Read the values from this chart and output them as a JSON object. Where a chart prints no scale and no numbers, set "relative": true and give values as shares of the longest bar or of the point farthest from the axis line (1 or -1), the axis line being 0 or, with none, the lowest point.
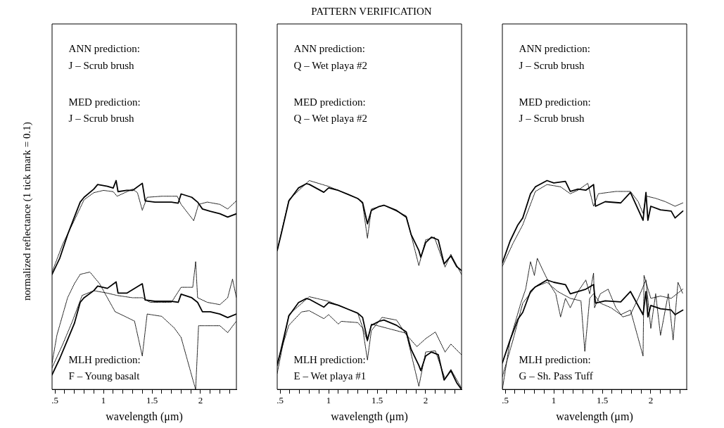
{
  "chart_data": [
    {
      "type": "line",
      "xlabel": "wavelength (μm)",
      "ylabel": "normalized reflectance (1 tick mark = 0.1)",
      "relative": true,
      "xlim": [
        0.47,
        2.37
      ],
      "xticks": [
        {
          "value": 0.5,
          "label": ".5"
        },
        {
          "value": 0.6,
          "label": null
        },
        {
          "value": 0.7,
          "label": null
        },
        {
          "value": 0.8,
          "label": null
        },
        {
          "value": 0.9,
          "label": null
        },
        1,
        {
          "value": 1.1,
          "label": null
        },
        {
          "value": 1.2,
          "label": null
        },
        {
          "value": 1.3,
          "label": null
        },
        {
          "value": 1.4,
          "label": null
        },
        1.5,
        {
          "value": 1.6,
          "label": null
        },
        {
          "value": 1.7,
          "label": null
        },
        {
          "value": 1.8,
          "label": null
        },
        {
          "value": 1.9,
          "label": null
        },
        2,
        {
          "value": 2.1,
          "label": null
        },
        {
          "value": 2.2,
          "label": null
        },
        {
          "value": 2.3,
          "label": null
        }
      ],
      "annotations": [
        "ANN prediction:",
        "J – Scrub brush",
        "MED prediction:",
        "J – Scrub brush",
        "MLH prediction:",
        "F – Young basalt"
      ],
      "series": [
        {
          "color": "#000000",
          "line_style": "solid",
          "x": [
            0.47,
            0.55,
            0.63,
            0.7,
            0.76,
            0.8,
            0.9,
            0.94,
            1.04,
            1.1,
            1.13,
            1.15,
            1.24,
            1.3,
            1.4,
            1.43,
            1.53,
            1.7,
            1.77,
            1.8,
            1.91,
            1.97,
            2.02,
            2.1,
            2.2,
            2.28,
            2.37
          ],
          "values": [
            0.551,
            0.629,
            0.741,
            0.825,
            0.897,
            0.92,
            0.959,
            0.981,
            0.973,
            0.964,
            1.0,
            0.947,
            0.953,
            0.953,
            0.987,
            0.903,
            0.897,
            0.897,
            0.892,
            0.936,
            0.92,
            0.897,
            0.864,
            0.853,
            0.841,
            0.825,
            0.841
          ]
        },
        {
          "color": "#000000",
          "line_style": "dotted",
          "x": [
            0.47,
            0.58,
            0.68,
            0.8,
            0.9,
            1.0,
            1.1,
            1.14,
            1.3,
            1.35,
            1.4,
            1.45,
            1.6,
            1.76,
            1.8,
            1.93,
            1.98,
            2.07,
            2.2,
            2.28,
            2.37
          ],
          "values": [
            0.562,
            0.696,
            0.791,
            0.908,
            0.942,
            0.953,
            0.947,
            0.925,
            0.959,
            0.942,
            0.858,
            0.92,
            0.925,
            0.925,
            0.886,
            0.808,
            0.886,
            0.897,
            0.886,
            0.864,
            0.903
          ]
        },
        {
          "color": "#000000",
          "line_style": "solid",
          "x": [
            0.47,
            0.55,
            0.63,
            0.7,
            0.76,
            0.8,
            0.9,
            0.94,
            1.04,
            1.13,
            1.15,
            1.24,
            1.4,
            1.43,
            1.53,
            1.7,
            1.77,
            1.8,
            1.91,
            1.97,
            2.02,
            2.1,
            2.2,
            2.28,
            2.37
          ],
          "values": [
            0.07,
            0.149,
            0.238,
            0.316,
            0.417,
            0.439,
            0.473,
            0.495,
            0.484,
            0.515,
            0.461,
            0.461,
            0.506,
            0.428,
            0.422,
            0.422,
            0.417,
            0.456,
            0.439,
            0.417,
            0.372,
            0.372,
            0.361,
            0.344,
            0.361
          ]
        },
        {
          "color": "#000000",
          "line_style": "dotted",
          "x": [
            0.47,
            0.52,
            0.63,
            0.7,
            0.76,
            0.86,
            0.96,
            1.04,
            1.12,
            1.22,
            1.32,
            1.4,
            1.45,
            1.6,
            1.73,
            1.8,
            1.92,
            1.95,
            1.98,
            2.07,
            2.2,
            2.28,
            2.37
          ],
          "values": [
            0.126,
            0.26,
            0.439,
            0.506,
            0.551,
            0.562,
            0.506,
            0.439,
            0.372,
            0.35,
            0.327,
            0.16,
            0.361,
            0.35,
            0.294,
            0.249,
            0.048,
            0,
            0.305,
            0.305,
            0.305,
            0.272,
            0.327
          ]
        },
        {
          "color": "#000000",
          "line_style": "dotted",
          "x": [
            0.47,
            0.58,
            0.68,
            0.78,
            0.9,
            1.04,
            1.14,
            1.3,
            1.4,
            1.48,
            1.7,
            1.8,
            1.92,
            1.95,
            1.97,
            2.07,
            2.2,
            2.28,
            2.33,
            2.37
          ],
          "values": [
            0.104,
            0.216,
            0.327,
            0.45,
            0.473,
            0.461,
            0.45,
            0.439,
            0.439,
            0.417,
            0.417,
            0.489,
            0.489,
            0.612,
            0.439,
            0.417,
            0.406,
            0.439,
            0.528,
            0.439
          ]
        }
      ]
    },
    {
      "type": "line",
      "title": "PATTERN VERIFICATION",
      "xlabel": "wavelength (μm)",
      "relative": true,
      "xlim": [
        0.47,
        2.37
      ],
      "xticks": [
        {
          "value": 0.5,
          "label": ".5"
        },
        {
          "value": 0.6,
          "label": null
        },
        {
          "value": 0.7,
          "label": null
        },
        {
          "value": 0.8,
          "label": null
        },
        {
          "value": 0.9,
          "label": null
        },
        1,
        {
          "value": 1.1,
          "label": null
        },
        {
          "value": 1.2,
          "label": null
        },
        {
          "value": 1.3,
          "label": null
        },
        {
          "value": 1.4,
          "label": null
        },
        1.5,
        {
          "value": 1.6,
          "label": null
        },
        {
          "value": 1.7,
          "label": null
        },
        {
          "value": 1.8,
          "label": null
        },
        {
          "value": 1.9,
          "label": null
        },
        2,
        {
          "value": 2.1,
          "label": null
        },
        {
          "value": 2.2,
          "label": null
        },
        {
          "value": 2.3,
          "label": null
        }
      ],
      "annotations": [
        "ANN prediction:",
        "Q – Wet playa #2",
        "MED prediction:",
        "Q – Wet playa #2",
        "MLH prediction:",
        "E – Wet playa #1"
      ],
      "series": [
        {
          "color": "#000000",
          "line_style": "solid",
          "x": [
            0.47,
            0.51,
            0.59,
            0.69,
            0.77,
            0.8,
            0.95,
            1.0,
            1.1,
            1.2,
            1.3,
            1.35,
            1.4,
            1.44,
            1.52,
            1.57,
            1.7,
            1.8,
            1.85,
            1.93,
            1.95,
            2.0,
            2.06,
            2.13,
            2.19,
            2.26,
            2.32,
            2.37
          ],
          "values": [
            0.665,
            0.742,
            0.902,
            0.965,
            0.985,
            0.982,
            0.944,
            0.965,
            0.953,
            0.934,
            0.914,
            0.895,
            0.793,
            0.857,
            0.876,
            0.882,
            0.857,
            0.825,
            0.742,
            0.665,
            0.633,
            0.703,
            0.729,
            0.716,
            0.601,
            0.639,
            0.588,
            0.569
          ]
        },
        {
          "color": "#000000",
          "line_style": "dotted",
          "x": [
            0.47,
            0.59,
            0.8,
            1.0,
            1.3,
            1.35,
            1.4,
            1.44,
            1.57,
            1.8,
            1.93,
            2.0,
            2.09,
            2.2,
            2.26,
            2.37
          ],
          "values": [
            0.665,
            0.908,
            1.0,
            0.972,
            0.914,
            0.889,
            0.724,
            0.864,
            0.882,
            0.831,
            0.593,
            0.716,
            0.729,
            0.586,
            0.647,
            0.55
          ]
        },
        {
          "color": "#000000",
          "line_style": "solid",
          "x": [
            0.47,
            0.51,
            0.59,
            0.69,
            0.77,
            0.8,
            0.95,
            1.0,
            1.1,
            1.2,
            1.3,
            1.35,
            1.4,
            1.44,
            1.52,
            1.57,
            1.7,
            1.8,
            1.85,
            1.93,
            1.95,
            2.0,
            2.06,
            2.13,
            2.19,
            2.26,
            2.32,
            2.37
          ],
          "values": [
            0.115,
            0.192,
            0.352,
            0.416,
            0.435,
            0.432,
            0.394,
            0.416,
            0.403,
            0.384,
            0.365,
            0.345,
            0.237,
            0.307,
            0.326,
            0.332,
            0.307,
            0.275,
            0.192,
            0.115,
            0.09,
            0.16,
            0.179,
            0.166,
            0.045,
            0.09,
            0.032,
            0
          ]
        },
        {
          "color": "#000000",
          "line_style": "dotted",
          "x": [
            0.47,
            0.59,
            0.8,
            1.0,
            1.3,
            1.4,
            1.44,
            1.8,
            1.93,
            2.0,
            2.1,
            2.2,
            2.26,
            2.37
          ],
          "values": [
            0.077,
            0.358,
            0.444,
            0.422,
            0.365,
            0.23,
            0.313,
            0.269,
            0.015,
            0.179,
            0.185,
            0.051,
            0.096,
            0.006
          ]
        },
        {
          "color": "#000000",
          "line_style": "dotted",
          "x": [
            0.47,
            0.59,
            0.72,
            0.8,
            0.95,
            1.0,
            1.1,
            1.13,
            1.3,
            1.35,
            1.4,
            1.44,
            1.55,
            1.7,
            1.8,
            1.91,
            2.0,
            2.1,
            2.2,
            2.26,
            2.37
          ],
          "values": [
            0.128,
            0.307,
            0.371,
            0.377,
            0.339,
            0.358,
            0.313,
            0.326,
            0.32,
            0.294,
            0.141,
            0.281,
            0.345,
            0.332,
            0.262,
            0.205,
            0.243,
            0.275,
            0.179,
            0.217,
            0.166
          ]
        }
      ]
    },
    {
      "type": "line",
      "xlabel": "wavelength (μm)",
      "relative": true,
      "xlim": [
        0.47,
        2.37
      ],
      "xticks": [
        {
          "value": 0.5,
          "label": ".5"
        },
        {
          "value": 0.6,
          "label": null
        },
        {
          "value": 0.7,
          "label": null
        },
        {
          "value": 0.8,
          "label": null
        },
        {
          "value": 0.9,
          "label": null
        },
        1,
        {
          "value": 1.1,
          "label": null
        },
        {
          "value": 1.2,
          "label": null
        },
        {
          "value": 1.3,
          "label": null
        },
        {
          "value": 1.4,
          "label": null
        },
        1.5,
        {
          "value": 1.6,
          "label": null
        },
        {
          "value": 1.7,
          "label": null
        },
        {
          "value": 1.8,
          "label": null
        },
        {
          "value": 1.9,
          "label": null
        },
        2,
        {
          "value": 2.1,
          "label": null
        },
        {
          "value": 2.2,
          "label": null
        },
        {
          "value": 2.3,
          "label": null
        }
      ],
      "annotations": [
        "ANN prediction:",
        "J – Scrub brush",
        "MED prediction:",
        "J – Scrub brush",
        "MLH prediction:",
        "G – Sh. Pass Tuff"
      ],
      "series": [
        {
          "color": "#000000",
          "line_style": "solid",
          "x": [
            0.47,
            0.55,
            0.63,
            0.68,
            0.76,
            0.81,
            0.93,
            1.0,
            1.12,
            1.17,
            1.25,
            1.33,
            1.41,
            1.43,
            1.53,
            1.69,
            1.79,
            1.92,
            1.95,
            1.97,
            2.0,
            2.1,
            2.21,
            2.25,
            2.33
          ],
          "values": [
            0.606,
            0.711,
            0.788,
            0.821,
            0.937,
            0.97,
            1.0,
            0.989,
            0.996,
            0.948,
            0.959,
            0.954,
            0.981,
            0.877,
            0.899,
            0.893,
            0.943,
            0.81,
            0.943,
            0.81,
            0.877,
            0.86,
            0.854,
            0.821,
            0.854
          ]
        },
        {
          "color": "#000000",
          "line_style": "dotted",
          "x": [
            0.47,
            0.58,
            0.68,
            0.81,
            0.93,
            1.07,
            1.17,
            1.25,
            1.35,
            1.41,
            1.46,
            1.64,
            1.79,
            1.87,
            1.92,
            1.95,
            2.05,
            2.15,
            2.25,
            2.33
          ],
          "values": [
            0.59,
            0.7,
            0.788,
            0.948,
            0.981,
            0.97,
            0.937,
            0.954,
            0.987,
            0.877,
            0.937,
            0.948,
            0.948,
            0.899,
            0.843,
            0.926,
            0.915,
            0.899,
            0.877,
            0.893
          ]
        },
        {
          "color": "#000000",
          "line_style": "solid",
          "x": [
            0.47,
            0.55,
            0.63,
            0.68,
            0.76,
            0.81,
            0.93,
            1.0,
            1.12,
            1.17,
            1.25,
            1.33,
            1.41,
            1.43,
            1.53,
            1.69,
            1.79,
            1.92,
            1.95,
            1.97,
            2.0,
            2.1,
            2.21,
            2.25,
            2.33
          ],
          "values": [
            0.127,
            0.237,
            0.336,
            0.369,
            0.469,
            0.491,
            0.524,
            0.513,
            0.502,
            0.458,
            0.469,
            0.48,
            0.502,
            0.413,
            0.424,
            0.419,
            0.469,
            0.358,
            0.469,
            0.347,
            0.402,
            0.386,
            0.38,
            0.358,
            0.38
          ]
        },
        {
          "color": "#000000",
          "line_style": "dotted",
          "x": [
            0.47,
            0.55,
            0.66,
            0.71,
            0.76,
            0.8,
            0.83,
            0.89,
            0.96,
            1.02,
            1.07,
            1.12,
            1.17,
            1.25,
            1.33,
            1.37,
            1.41,
            1.42,
            1.48,
            1.56,
            1.64,
            1.71,
            1.79,
            1.87,
            1.95,
            2.0,
            2.05,
            2.1,
            2.18,
            2.23,
            2.28,
            2.33
          ],
          "values": [
            0,
            0.237,
            0.413,
            0.48,
            0.612,
            0.546,
            0.628,
            0.568,
            0.502,
            0.458,
            0.347,
            0.436,
            0.391,
            0.469,
            0.524,
            0.458,
            0.557,
            0.391,
            0.458,
            0.48,
            0.391,
            0.347,
            0.358,
            0.436,
            0.524,
            0.292,
            0.458,
            0.259,
            0.458,
            0.237,
            0.513,
            0.458
          ]
        },
        {
          "color": "#000000",
          "line_style": "dotted",
          "x": [
            0.47,
            0.58,
            0.68,
            0.81,
            0.93,
            1.04,
            1.17,
            1.28,
            1.32,
            1.37,
            1.41,
            1.48,
            1.59,
            1.69,
            1.79,
            1.92,
            1.93,
            2.0,
            2.1,
            2.21,
            2.33
          ],
          "values": [
            0.061,
            0.237,
            0.413,
            0.491,
            0.513,
            0.469,
            0.436,
            0.424,
            0.182,
            0.436,
            0.458,
            0.413,
            0.391,
            0.358,
            0.38,
            0.16,
            0.546,
            0.436,
            0.447,
            0.436,
            0.48
          ]
        }
      ]
    }
  ]
}
